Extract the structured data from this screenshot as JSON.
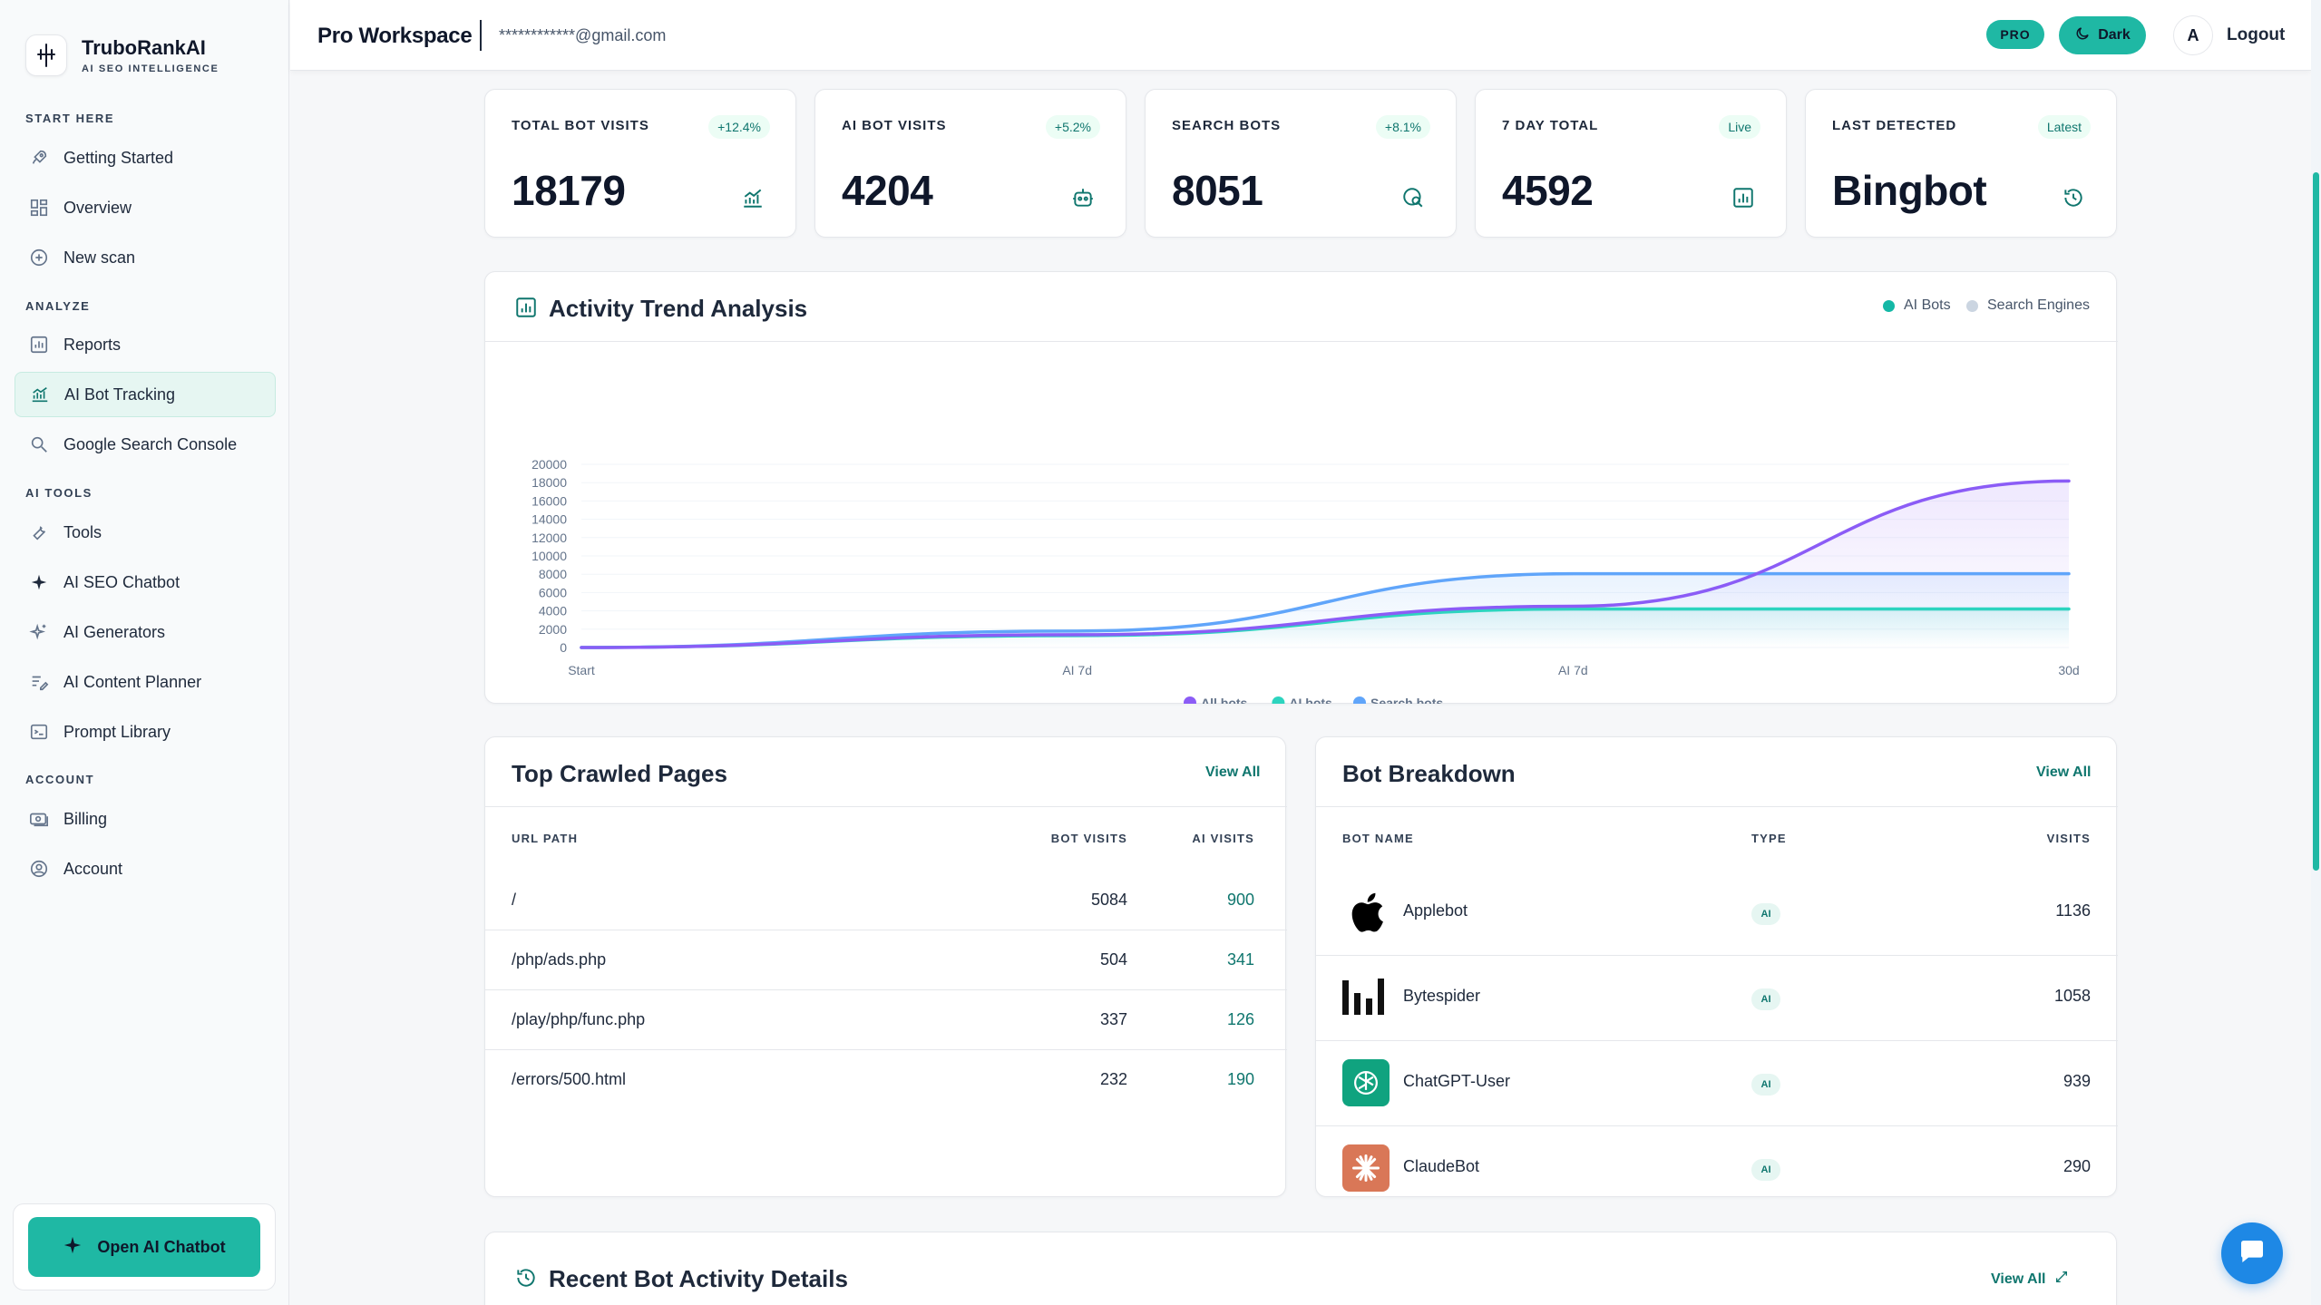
{
  "brand": {
    "name": "TruboRankAI",
    "subtitle": "AI SEO INTELLIGENCE"
  },
  "sidebar": {
    "sections": [
      {
        "label": "START HERE"
      },
      {
        "label": "ANALYZE"
      },
      {
        "label": "AI TOOLS"
      },
      {
        "label": "ACCOUNT"
      }
    ],
    "items": [
      {
        "label": "Getting Started",
        "icon": "rocket-icon"
      },
      {
        "label": "Overview",
        "icon": "grid-icon"
      },
      {
        "label": "New scan",
        "icon": "plus-circle-icon"
      },
      {
        "label": "Reports",
        "icon": "bar-chart-icon"
      },
      {
        "label": "AI Bot Tracking",
        "icon": "trend-chart-icon",
        "active": true
      },
      {
        "label": "Google Search Console",
        "icon": "search-icon"
      },
      {
        "label": "Tools",
        "icon": "wrench-icon"
      },
      {
        "label": "AI SEO Chatbot",
        "icon": "sparkle-icon"
      },
      {
        "label": "AI Generators",
        "icon": "sparkles-icon"
      },
      {
        "label": "AI Content Planner",
        "icon": "edit-list-icon"
      },
      {
        "label": "Prompt Library",
        "icon": "terminal-icon"
      },
      {
        "label": "Billing",
        "icon": "money-icon"
      },
      {
        "label": "Account",
        "icon": "user-circle-icon"
      }
    ],
    "chatbot_button": "Open AI Chatbot"
  },
  "header": {
    "workspace": "Pro Workspace",
    "email": "************@gmail.com",
    "pro_badge": "PRO",
    "theme_button": "Dark",
    "avatar_letter": "A",
    "logout": "Logout"
  },
  "stats": [
    {
      "label": "TOTAL BOT VISITS",
      "badge": "+12.4%",
      "value": "18179",
      "icon": "trend-chart-icon"
    },
    {
      "label": "AI BOT VISITS",
      "badge": "+5.2%",
      "value": "4204",
      "icon": "robot-icon"
    },
    {
      "label": "SEARCH BOTS",
      "badge": "+8.1%",
      "value": "8051",
      "icon": "search-globe-icon"
    },
    {
      "label": "7 DAY TOTAL",
      "badge": "Live",
      "value": "4592",
      "icon": "bar-chart-icon"
    },
    {
      "label": "LAST DETECTED",
      "badge": "Latest",
      "value": "Bingbot",
      "icon": "history-icon"
    }
  ],
  "trend": {
    "title": "Activity Trend Analysis",
    "legend_top": [
      "AI Bots",
      "Search Engines"
    ],
    "colors": {
      "all": "#8b5cf6",
      "ai": "#2dd4bf",
      "search": "#60a5fa",
      "legend_ai": "#14b8a6",
      "legend_search": "#cbd5e1"
    }
  },
  "chart_data": {
    "type": "line",
    "x": [
      "Start",
      "AI 7d",
      "AI 7d",
      "30d"
    ],
    "yticks": [
      "20000",
      "18000",
      "16000",
      "14000",
      "12000",
      "10000",
      "8000",
      "6000",
      "4000",
      "2000",
      "0"
    ],
    "ylim": [
      0,
      20000
    ],
    "series": [
      {
        "name": "All bots",
        "values": [
          0,
          1400,
          4500,
          18179
        ]
      },
      {
        "name": "AI bots",
        "values": [
          0,
          1300,
          4204,
          4204
        ]
      },
      {
        "name": "Search bots",
        "values": [
          0,
          1800,
          8051,
          8051
        ]
      }
    ],
    "legend_placement": "bottom-center",
    "grid": true
  },
  "crawled": {
    "title": "Top Crawled Pages",
    "view_all": "View All",
    "headers": [
      "URL PATH",
      "BOT VISITS",
      "AI VISITS"
    ],
    "rows": [
      {
        "path": "/",
        "bot": "5084",
        "ai": "900"
      },
      {
        "path": "/php/ads.php",
        "bot": "504",
        "ai": "341"
      },
      {
        "path": "/play/php/func.php",
        "bot": "337",
        "ai": "126"
      },
      {
        "path": "/errors/500.html",
        "bot": "232",
        "ai": "190"
      }
    ]
  },
  "breakdown": {
    "title": "Bot Breakdown",
    "view_all": "View All",
    "headers": [
      "BOT NAME",
      "TYPE",
      "VISITS"
    ],
    "rows": [
      {
        "name": "Applebot",
        "type": "AI",
        "visits": "1136",
        "icon": "apple-icon"
      },
      {
        "name": "Bytespider",
        "type": "AI",
        "visits": "1058",
        "icon": "bytedance-icon"
      },
      {
        "name": "ChatGPT-User",
        "type": "AI",
        "visits": "939",
        "icon": "openai-icon"
      },
      {
        "name": "ClaudeBot",
        "type": "AI",
        "visits": "290",
        "icon": "claude-icon"
      }
    ]
  },
  "recent": {
    "title": "Recent Bot Activity Details",
    "view_all": "View All"
  }
}
